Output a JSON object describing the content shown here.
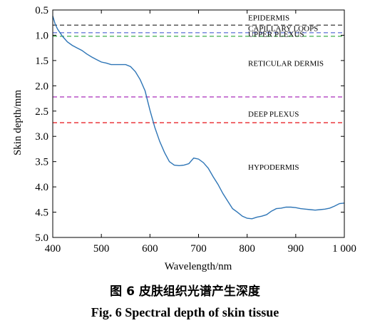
{
  "chart_data": {
    "type": "line",
    "xlabel": "Wavelength/nm",
    "ylabel": "Skin depth/mm",
    "xlim": [
      400,
      1000
    ],
    "ylim": [
      0.5,
      5.0
    ],
    "y_inverted": true,
    "grid": false,
    "x_ticks": [
      400,
      500,
      600,
      700,
      800,
      900,
      1000
    ],
    "x_tick_labels": [
      "400",
      "500",
      "600",
      "700",
      "800",
      "900",
      "1 000"
    ],
    "y_ticks": [
      0.5,
      1.0,
      1.5,
      2.0,
      2.5,
      3.0,
      3.5,
      4.0,
      4.5,
      5.0
    ],
    "y_tick_labels": [
      "0.5",
      "1.0",
      "1.5",
      "2.0",
      "2.5",
      "3.0",
      "3.5",
      "4.0",
      "4.5",
      "5.0"
    ],
    "series": [
      {
        "color": "#2e75b6",
        "x": [
          400,
          405,
          410,
          420,
          430,
          440,
          450,
          460,
          470,
          480,
          490,
          500,
          510,
          520,
          530,
          540,
          550,
          560,
          570,
          580,
          590,
          600,
          610,
          620,
          630,
          640,
          650,
          660,
          670,
          680,
          690,
          700,
          710,
          720,
          730,
          740,
          750,
          760,
          770,
          780,
          790,
          800,
          810,
          820,
          830,
          840,
          850,
          860,
          870,
          880,
          890,
          900,
          910,
          920,
          930,
          940,
          950,
          960,
          970,
          980,
          990,
          1000
        ],
        "y": [
          0.62,
          0.78,
          0.88,
          1.02,
          1.13,
          1.2,
          1.25,
          1.3,
          1.37,
          1.43,
          1.48,
          1.53,
          1.55,
          1.58,
          1.58,
          1.58,
          1.58,
          1.62,
          1.72,
          1.88,
          2.1,
          2.48,
          2.82,
          3.1,
          3.32,
          3.5,
          3.57,
          3.58,
          3.57,
          3.54,
          3.43,
          3.45,
          3.52,
          3.63,
          3.8,
          3.95,
          4.13,
          4.28,
          4.43,
          4.5,
          4.58,
          4.62,
          4.63,
          4.6,
          4.58,
          4.55,
          4.48,
          4.43,
          4.42,
          4.4,
          4.4,
          4.41,
          4.43,
          4.44,
          4.45,
          4.46,
          4.45,
          4.44,
          4.42,
          4.38,
          4.33,
          4.32
        ]
      }
    ],
    "reference_lines": [
      {
        "y": 0.8,
        "color": "#3a3a3a",
        "label": "EPIDERMIS",
        "label_y": 0.65
      },
      {
        "y": 0.95,
        "color": "#5b6fd6",
        "label": "CAPILLARY LOOPS",
        "label_y": 0.86
      },
      {
        "y": 1.02,
        "color": "#3fae49",
        "label": "UPPER PLEXUS",
        "label_y": 0.97
      },
      {
        "y": 2.22,
        "color": "#b040c0",
        "label": "RETICULAR DERMIS",
        "label_y": 1.55
      },
      {
        "y": 2.73,
        "color": "#e8262c",
        "label": "DEEP PLEXUS",
        "label_y": 2.55
      },
      {
        "y": null,
        "color": "#000000",
        "label": "HYPODERMIS",
        "label_y": 3.6
      }
    ]
  },
  "caption": {
    "chinese": "图 6 皮肤组织光谱产生深度",
    "english": "Fig. 6 Spectral depth of skin tissue"
  }
}
